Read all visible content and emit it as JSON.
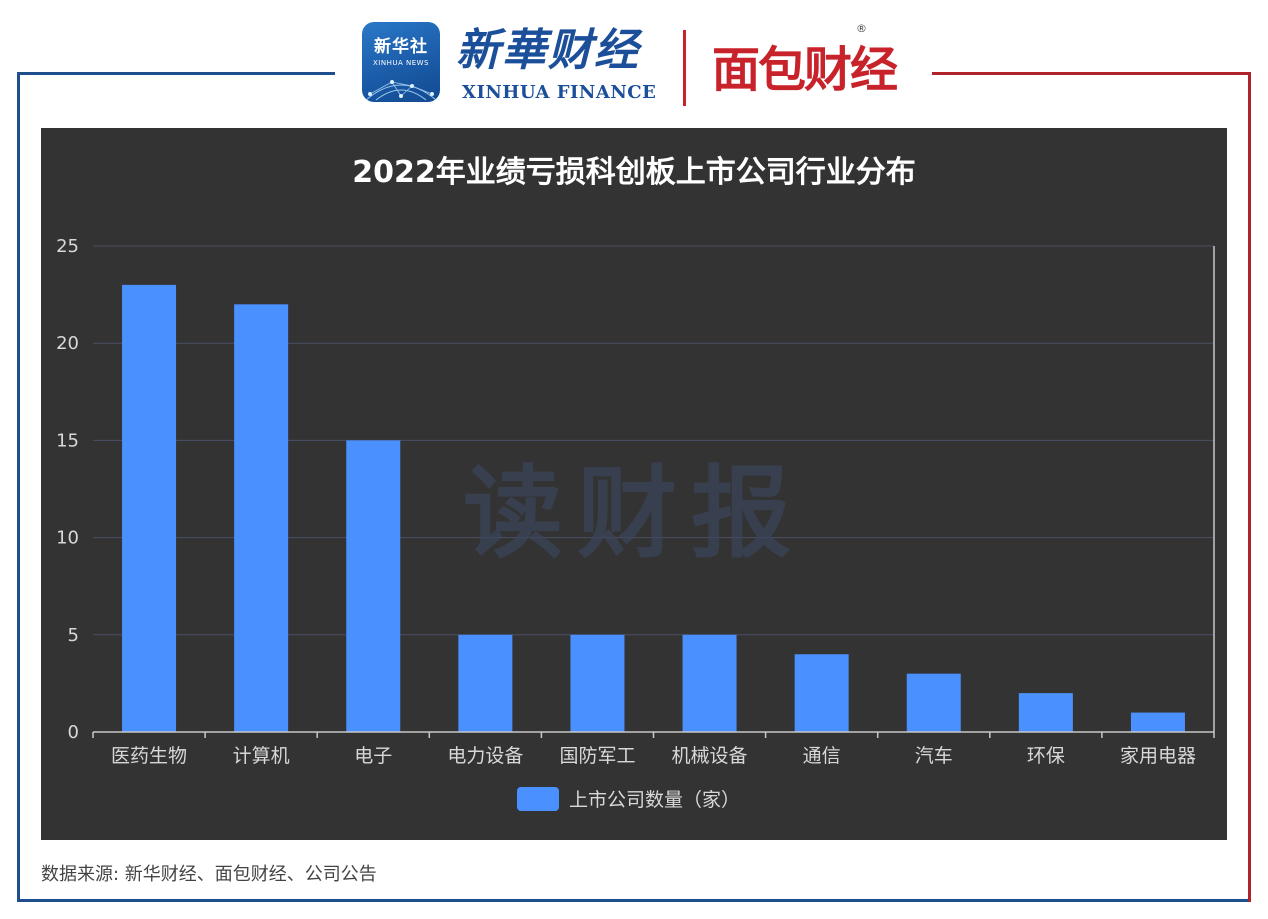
{
  "header": {
    "logo_cn": "新华社",
    "logo_en": "XINHUA NEWS",
    "brand_cn": "新華财经",
    "brand_en": "XINHUA FINANCE",
    "partner_logo": "面包财经",
    "registered_mark": "®"
  },
  "colors": {
    "frame_left": "#1f4e8c",
    "frame_right": "#b0232a",
    "panel_bg": "#333333",
    "bar": "#4a90ff",
    "grid": "#4a4f66",
    "text": "#d8d8d8"
  },
  "watermark": "读财报",
  "chart_data": {
    "type": "bar",
    "title": "2022年业绩亏损科创板上市公司行业分布",
    "categories": [
      "医药生物",
      "计算机",
      "电子",
      "电力设备",
      "国防军工",
      "机械设备",
      "通信",
      "汽车",
      "环保",
      "家用电器"
    ],
    "series": [
      {
        "name": "上市公司数量（家）",
        "values": [
          23,
          22,
          15,
          5,
          5,
          5,
          4,
          3,
          2,
          1
        ]
      }
    ],
    "ylim": [
      0,
      25
    ],
    "yticks": [
      0,
      5,
      10,
      15,
      20,
      25
    ],
    "grid": true,
    "legend": "bottom-center"
  },
  "footer": {
    "source": "数据来源: 新华财经、面包财经、公司公告"
  }
}
